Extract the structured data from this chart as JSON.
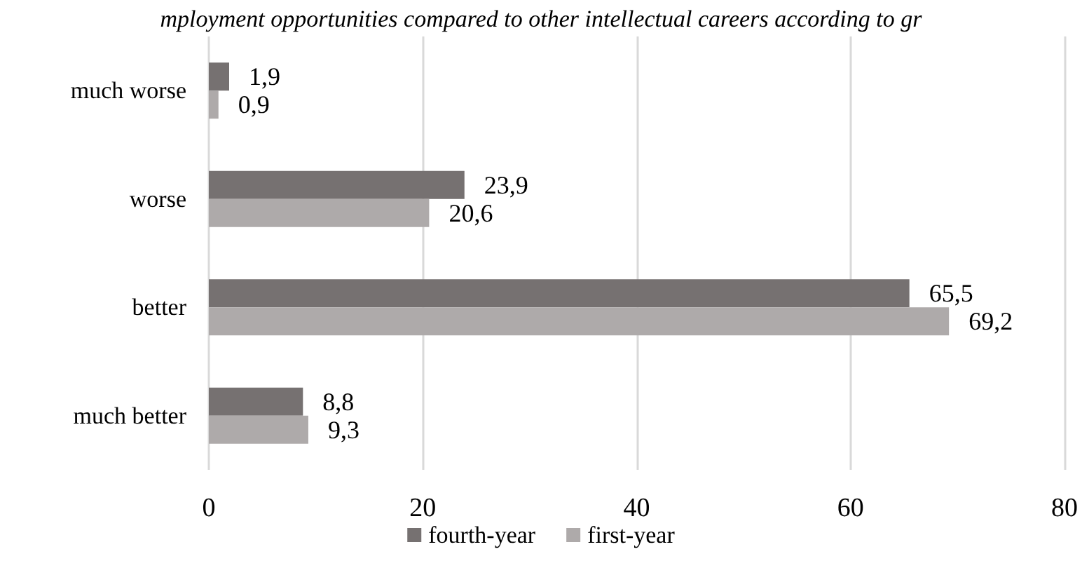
{
  "chart_data": {
    "type": "bar",
    "orientation": "horizontal",
    "title": "mployment opportunities compared to other intellectual careers according to gr",
    "categories": [
      "much worse",
      "worse",
      "better",
      "much better"
    ],
    "series": [
      {
        "name": "fourth-year",
        "color": "#767171",
        "values": [
          1.9,
          23.9,
          65.5,
          8.8
        ],
        "value_labels": [
          "1,9",
          "23,9",
          "65,5",
          "8,8"
        ]
      },
      {
        "name": "first-year",
        "color": "#aeaaaa",
        "values": [
          0.9,
          20.6,
          69.2,
          9.3
        ],
        "value_labels": [
          "0,9",
          "20,6",
          "69,2",
          "9,3"
        ]
      }
    ],
    "xlim": [
      0,
      80
    ],
    "xticks": [
      0,
      20,
      40,
      60,
      80
    ],
    "grid": "x",
    "legend": "bottom"
  }
}
